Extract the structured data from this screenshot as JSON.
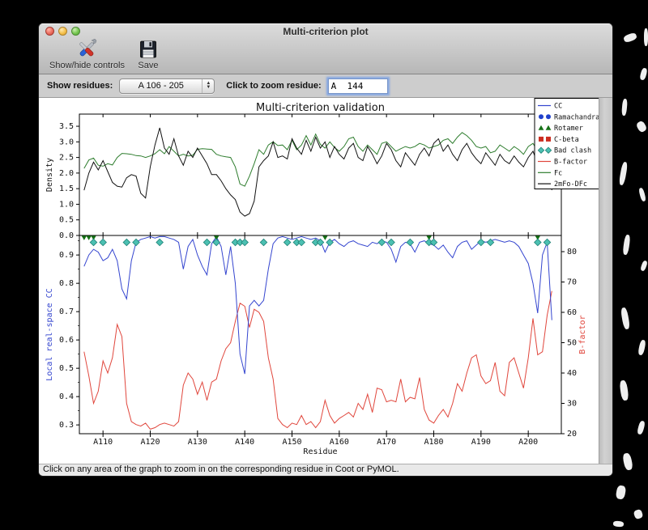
{
  "window": {
    "title": "Multi-criterion plot"
  },
  "toolbar": {
    "controls_label": "Show/hide controls",
    "save_label": "Save"
  },
  "controls": {
    "show_residues_label": "Show residues:",
    "range_value": "A 106 - 205",
    "zoom_label": "Click to zoom residue:",
    "zoom_value": "A  144"
  },
  "status": {
    "message": "Click on any area of the graph to zoom in on the corresponding residue in Coot or PyMOL."
  },
  "chart_data": {
    "type": "line",
    "title": "Multi-criterion validation",
    "xlabel": "Residue",
    "residue_start": 106,
    "x_range": [
      105,
      207
    ],
    "x_ticks": {
      "values": [
        110,
        120,
        130,
        140,
        150,
        160,
        170,
        180,
        190,
        200
      ],
      "labels": [
        "A110",
        "A120",
        "A130",
        "A140",
        "A150",
        "A160",
        "A170",
        "A180",
        "A190",
        "A200"
      ]
    },
    "top_panel": {
      "ylabel": "Density",
      "ylabel_color": "#111111",
      "ylim": [
        0,
        3.89
      ],
      "yticks": {
        "values": [
          0,
          0.5,
          1.0,
          1.5,
          2.0,
          2.5,
          3.0,
          3.5
        ],
        "labels": [
          "0.0",
          "0.5",
          "1.0",
          "1.5",
          "2.0",
          "2.5",
          "3.0",
          "3.5"
        ]
      },
      "series": [
        {
          "name": "Fc",
          "color": "#2e7d2e",
          "values": [
            2.15,
            2.42,
            2.48,
            2.25,
            2.22,
            2.3,
            2.26,
            2.5,
            2.63,
            2.62,
            2.6,
            2.56,
            2.55,
            2.5,
            2.55,
            2.62,
            2.75,
            2.62,
            2.85,
            2.7,
            2.55,
            2.6,
            2.55,
            2.57,
            2.76,
            2.78,
            2.77,
            2.76,
            2.6,
            2.55,
            2.52,
            2.5,
            2.2,
            1.65,
            1.58,
            1.9,
            2.3,
            2.75,
            2.6,
            2.9,
            3.0,
            2.88,
            2.9,
            2.75,
            3.05,
            2.75,
            2.9,
            3.2,
            2.9,
            3.25,
            2.92,
            2.8,
            3.0,
            2.82,
            2.7,
            2.85,
            3.1,
            3.15,
            2.85,
            2.7,
            2.9,
            2.75,
            2.6,
            2.95,
            3.0,
            2.85,
            2.7,
            2.78,
            2.85,
            2.8,
            2.85,
            2.95,
            2.9,
            2.8,
            2.85,
            2.9,
            3.05,
            3.1,
            2.95,
            3.15,
            3.3,
            3.2,
            3.05,
            2.85,
            2.8,
            2.85,
            2.65,
            2.7,
            2.9,
            2.8,
            2.7,
            2.85,
            2.75,
            2.6,
            2.85,
            2.95,
            2.7,
            2.35,
            2.65,
            2.6
          ]
        },
        {
          "name": "2mFo-DFc",
          "color": "#111111",
          "values": [
            1.45,
            2.0,
            2.35,
            2.1,
            2.4,
            2.05,
            1.7,
            1.58,
            1.55,
            1.85,
            1.95,
            1.9,
            1.35,
            1.2,
            2.2,
            2.9,
            3.45,
            2.8,
            2.6,
            3.1,
            2.55,
            2.25,
            2.7,
            2.5,
            2.8,
            2.55,
            2.3,
            1.95,
            1.95,
            1.75,
            1.5,
            1.3,
            1.15,
            0.75,
            0.62,
            0.7,
            1.1,
            2.2,
            2.4,
            2.55,
            3.0,
            2.5,
            2.55,
            2.45,
            3.1,
            2.8,
            2.6,
            3.05,
            2.7,
            3.15,
            2.8,
            3.0,
            2.5,
            2.85,
            2.6,
            2.45,
            2.8,
            2.95,
            2.5,
            2.4,
            2.85,
            2.6,
            2.3,
            2.55,
            2.95,
            2.75,
            2.4,
            2.2,
            2.65,
            2.45,
            2.25,
            2.6,
            2.8,
            2.55,
            2.95,
            3.1,
            2.7,
            2.9,
            2.6,
            2.4,
            2.75,
            2.95,
            2.65,
            2.45,
            2.3,
            2.65,
            2.45,
            2.25,
            2.6,
            2.4,
            2.3,
            2.55,
            2.35,
            2.2,
            2.5,
            2.7,
            2.3,
            1.55,
            2.6,
            1.45
          ]
        }
      ]
    },
    "bottom_panel": {
      "ylabel_left": "Local real-space CC",
      "ylabel_left_color": "#3445cf",
      "ylabel_right": "B-factor",
      "ylabel_right_color": "#e0463c",
      "ylim_left": [
        0.269,
        0.969
      ],
      "yticks_left": {
        "values": [
          0.3,
          0.4,
          0.5,
          0.6,
          0.7,
          0.8,
          0.9
        ],
        "labels": [
          "0.3",
          "0.4",
          "0.5",
          "0.6",
          "0.7",
          "0.8",
          "0.9"
        ]
      },
      "ylim_right": [
        20,
        85.33
      ],
      "yticks_right": {
        "values": [
          20,
          30,
          40,
          50,
          60,
          70,
          80
        ],
        "labels": [
          "20",
          "30",
          "40",
          "50",
          "60",
          "70",
          "80"
        ]
      },
      "series_left": {
        "name": "CC",
        "color": "#3445cf",
        "values": [
          0.86,
          0.9,
          0.92,
          0.91,
          0.88,
          0.89,
          0.92,
          0.88,
          0.78,
          0.745,
          0.88,
          0.945,
          0.955,
          0.96,
          0.965,
          0.96,
          0.965,
          0.965,
          0.96,
          0.955,
          0.945,
          0.85,
          0.93,
          0.955,
          0.9,
          0.86,
          0.83,
          0.94,
          0.965,
          0.93,
          0.83,
          0.93,
          0.8,
          0.55,
          0.48,
          0.72,
          0.74,
          0.72,
          0.74,
          0.85,
          0.94,
          0.96,
          0.965,
          0.96,
          0.955,
          0.96,
          0.965,
          0.96,
          0.955,
          0.96,
          0.95,
          0.91,
          0.945,
          0.955,
          0.94,
          0.93,
          0.945,
          0.95,
          0.94,
          0.935,
          0.93,
          0.945,
          0.94,
          0.95,
          0.945,
          0.92,
          0.875,
          0.93,
          0.945,
          0.94,
          0.91,
          0.945,
          0.95,
          0.94,
          0.935,
          0.92,
          0.935,
          0.91,
          0.89,
          0.93,
          0.945,
          0.95,
          0.92,
          0.935,
          0.95,
          0.945,
          0.95,
          0.955,
          0.95,
          0.945,
          0.95,
          0.945,
          0.93,
          0.9,
          0.87,
          0.8,
          0.695,
          0.9,
          0.945,
          0.67
        ]
      },
      "series_right": {
        "name": "B-factor",
        "color": "#e0463c",
        "values": [
          47,
          39,
          30,
          34,
          44,
          40,
          45,
          56,
          52,
          30,
          24,
          23,
          22.5,
          23.5,
          21.5,
          22,
          23,
          23.5,
          23,
          22.5,
          24,
          36,
          40,
          38,
          33,
          37,
          31,
          37,
          38,
          44,
          48,
          50,
          57,
          63,
          62,
          55,
          61,
          60,
          57,
          45,
          38,
          25,
          23,
          22,
          23.5,
          23,
          26,
          23,
          24,
          22,
          24,
          31,
          26,
          23.5,
          25,
          26,
          27,
          25.5,
          30,
          28,
          33,
          27,
          35,
          34.5,
          30.5,
          31,
          30.5,
          38,
          30.5,
          32,
          31.5,
          38.5,
          28,
          24.5,
          23.5,
          26,
          28,
          25.5,
          30,
          36.5,
          34,
          40,
          45,
          46,
          39,
          36.5,
          37.5,
          43.5,
          34,
          32.5,
          43.5,
          45,
          40,
          35,
          45,
          58,
          46,
          47,
          59,
          67
        ]
      },
      "markers": {
        "rotamer": {
          "color": "#157015",
          "residues": [
            106,
            107,
            108,
            134,
            157,
            179,
            202
          ]
        },
        "bad_clash": {
          "color": "#4cc0b2",
          "edge": "#1f8276",
          "residues": [
            108,
            110,
            115,
            117,
            122,
            132,
            134,
            138,
            139,
            140,
            144,
            149,
            151,
            152,
            155,
            156,
            158,
            169,
            171,
            175,
            179,
            180,
            190,
            192,
            202,
            204
          ]
        }
      }
    },
    "legend": {
      "position": "upper right",
      "entries": [
        {
          "label": "CC",
          "type": "line",
          "color": "#3445cf"
        },
        {
          "label": "Ramachandran",
          "type": "circles",
          "color": "#2040cc"
        },
        {
          "label": "Rotamer",
          "type": "triangles",
          "color": "#157015"
        },
        {
          "label": "C-beta",
          "type": "squares",
          "color": "#cc2d20"
        },
        {
          "label": "Bad clash",
          "type": "diamonds",
          "color": "#4cc0b2"
        },
        {
          "label": "B-factor",
          "type": "line",
          "color": "#e0463c"
        },
        {
          "label": "Fc",
          "type": "line",
          "color": "#2e7d2e"
        },
        {
          "label": "2mFo-DFc",
          "type": "line",
          "color": "#111111"
        }
      ]
    }
  }
}
